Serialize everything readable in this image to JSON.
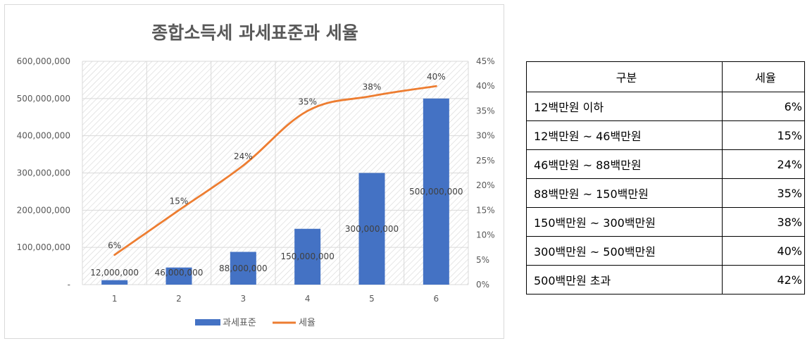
{
  "chart_data": {
    "type": "bar+line",
    "title": "종합소득세 과세표준과 세율",
    "categories": [
      "1",
      "2",
      "3",
      "4",
      "5",
      "6"
    ],
    "series": [
      {
        "name": "과세표준",
        "type": "bar",
        "axis": "left",
        "values": [
          12000000,
          46000000,
          88000000,
          150000000,
          300000000,
          500000000
        ],
        "labels": [
          "12,000,000",
          "46,000,000",
          "88,000,000",
          "150,000,000",
          "300,000,000",
          "500,000,000"
        ],
        "color": "#4472C4"
      },
      {
        "name": "세율",
        "type": "line",
        "axis": "right",
        "values": [
          6,
          15,
          24,
          35,
          38,
          40
        ],
        "labels": [
          "6%",
          "15%",
          "24%",
          "35%",
          "38%",
          "40%"
        ],
        "color": "#ED7D31"
      }
    ],
    "y_left": {
      "min": 0,
      "max": 600000000,
      "ticks": [
        "-",
        "100,000,000",
        "200,000,000",
        "300,000,000",
        "400,000,000",
        "500,000,000",
        "600,000,000"
      ]
    },
    "y_right": {
      "min": 0,
      "max": 45,
      "ticks": [
        "0%",
        "5%",
        "10%",
        "15%",
        "20%",
        "25%",
        "30%",
        "35%",
        "40%",
        "45%"
      ]
    },
    "grid": true,
    "legend": "bottom"
  },
  "table": {
    "headers": [
      "구분",
      "세율"
    ],
    "rows": [
      {
        "range": "12백만원 이하",
        "rate": "6%"
      },
      {
        "range": "12백만원 ~ 46백만원",
        "rate": "15%"
      },
      {
        "range": "46백만원 ~ 88백만원",
        "rate": "24%"
      },
      {
        "range": "88백만원 ~ 150백만원",
        "rate": "35%"
      },
      {
        "range": "150백만원 ~ 300백만원",
        "rate": "38%"
      },
      {
        "range": "300백만원 ~ 500백만원",
        "rate": "40%"
      },
      {
        "range": "500백만원 초과",
        "rate": "42%"
      }
    ]
  }
}
